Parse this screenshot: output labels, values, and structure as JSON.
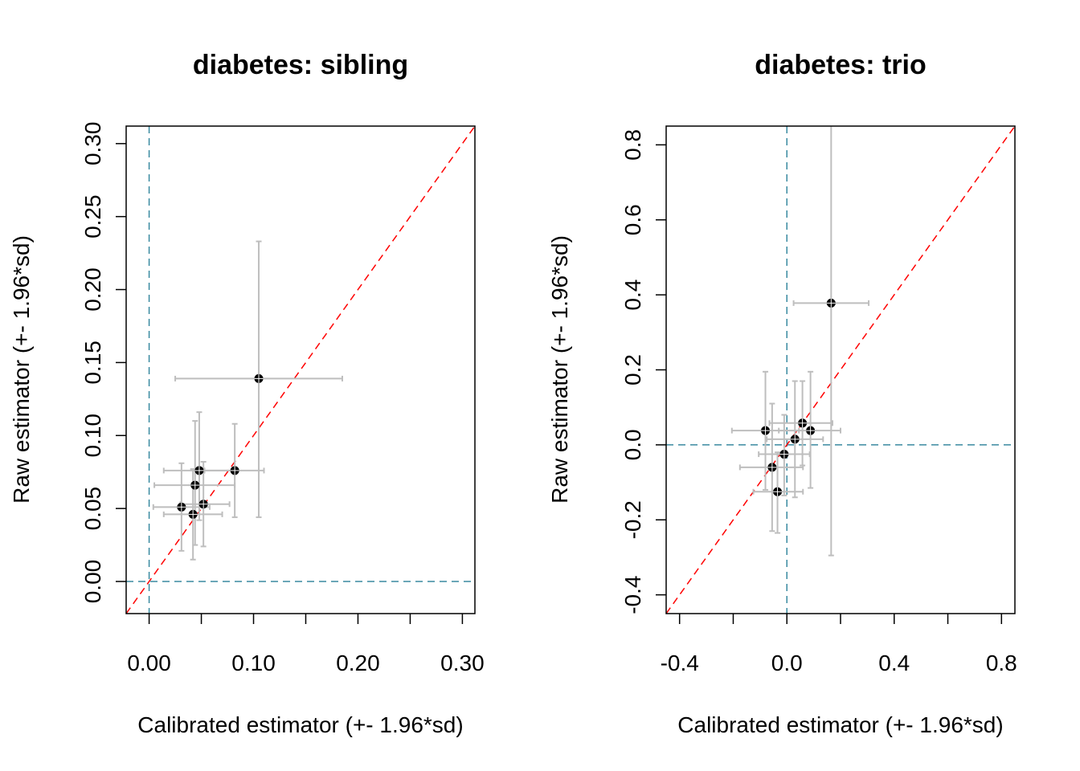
{
  "colors": {
    "background": "#ffffff",
    "axis": "#000000",
    "identity_line": "#ff0000",
    "reference_line": "#3a8aa0",
    "error_bar": "#bebebe",
    "point_fill": "#000000",
    "point_highlight": "#ffffff"
  },
  "chart_data": [
    {
      "type": "scatter",
      "title": "diabetes: sibling",
      "xlabel": "Calibrated estimator (+- 1.96*sd)",
      "ylabel": "Raw estimator (+- 1.96*sd)",
      "xlim": [
        -0.022,
        0.312
      ],
      "ylim": [
        -0.022,
        0.312
      ],
      "xticks": [
        0.0,
        0.05,
        0.1,
        0.15,
        0.2,
        0.25,
        0.3
      ],
      "xtick_labels": [
        "0.00",
        "",
        "0.10",
        "",
        "0.20",
        "",
        "0.30"
      ],
      "yticks": [
        0.0,
        0.05,
        0.1,
        0.15,
        0.2,
        0.25,
        0.3
      ],
      "ytick_labels": [
        "0.00",
        "0.05",
        "0.10",
        "0.15",
        "0.20",
        "0.25",
        "0.30"
      ],
      "reference_lines": {
        "x": 0,
        "y": 0,
        "identity": true
      },
      "points": [
        {
          "x": 0.105,
          "y": 0.139,
          "x_lo": 0.025,
          "x_hi": 0.185,
          "y_lo": 0.044,
          "y_hi": 0.233
        },
        {
          "x": 0.082,
          "y": 0.076,
          "x_lo": 0.053,
          "x_hi": 0.11,
          "y_lo": 0.044,
          "y_hi": 0.108
        },
        {
          "x": 0.048,
          "y": 0.076,
          "x_lo": 0.014,
          "x_hi": 0.082,
          "y_lo": 0.042,
          "y_hi": 0.116
        },
        {
          "x": 0.044,
          "y": 0.066,
          "x_lo": 0.005,
          "x_hi": 0.082,
          "y_lo": 0.025,
          "y_hi": 0.11
        },
        {
          "x": 0.052,
          "y": 0.053,
          "x_lo": 0.03,
          "x_hi": 0.077,
          "y_lo": 0.024,
          "y_hi": 0.082
        },
        {
          "x": 0.031,
          "y": 0.051,
          "x_lo": 0.004,
          "x_hi": 0.058,
          "y_lo": 0.021,
          "y_hi": 0.081
        },
        {
          "x": 0.042,
          "y": 0.046,
          "x_lo": 0.014,
          "x_hi": 0.07,
          "y_lo": 0.015,
          "y_hi": 0.077
        }
      ]
    },
    {
      "type": "scatter",
      "title": "diabetes: trio",
      "xlabel": "Calibrated estimator (+- 1.96*sd)",
      "ylabel": "Raw estimator (+- 1.96*sd)",
      "xlim": [
        -0.45,
        0.85
      ],
      "ylim": [
        -0.45,
        0.85
      ],
      "xticks": [
        -0.4,
        -0.2,
        0.0,
        0.2,
        0.4,
        0.6,
        0.8
      ],
      "xtick_labels": [
        "-0.4",
        "",
        "0.0",
        "",
        "0.4",
        "",
        "0.8"
      ],
      "yticks": [
        -0.4,
        -0.2,
        0.0,
        0.2,
        0.4,
        0.6,
        0.8
      ],
      "ytick_labels": [
        "-0.4",
        "-0.2",
        "0.0",
        "0.2",
        "0.4",
        "0.6",
        "0.8"
      ],
      "reference_lines": {
        "x": 0,
        "y": 0,
        "identity": true
      },
      "points": [
        {
          "x": 0.165,
          "y": 0.378,
          "x_lo": 0.025,
          "x_hi": 0.305,
          "y_lo": -0.295,
          "y_hi": 1.05
        },
        {
          "x": -0.08,
          "y": 0.038,
          "x_lo": -0.205,
          "x_hi": 0.045,
          "y_lo": -0.12,
          "y_hi": 0.195
        },
        {
          "x": 0.058,
          "y": 0.058,
          "x_lo": -0.065,
          "x_hi": 0.17,
          "y_lo": -0.055,
          "y_hi": 0.17
        },
        {
          "x": 0.088,
          "y": 0.038,
          "x_lo": -0.03,
          "x_hi": 0.2,
          "y_lo": -0.115,
          "y_hi": 0.195
        },
        {
          "x": 0.03,
          "y": 0.015,
          "x_lo": -0.075,
          "x_hi": 0.135,
          "y_lo": -0.14,
          "y_hi": 0.17
        },
        {
          "x": -0.01,
          "y": -0.025,
          "x_lo": -0.105,
          "x_hi": 0.085,
          "y_lo": -0.135,
          "y_hi": 0.08
        },
        {
          "x": -0.055,
          "y": -0.06,
          "x_lo": -0.175,
          "x_hi": 0.06,
          "y_lo": -0.23,
          "y_hi": 0.11
        },
        {
          "x": -0.035,
          "y": -0.125,
          "x_lo": -0.125,
          "x_hi": 0.06,
          "y_lo": -0.235,
          "y_hi": -0.02
        }
      ]
    }
  ]
}
